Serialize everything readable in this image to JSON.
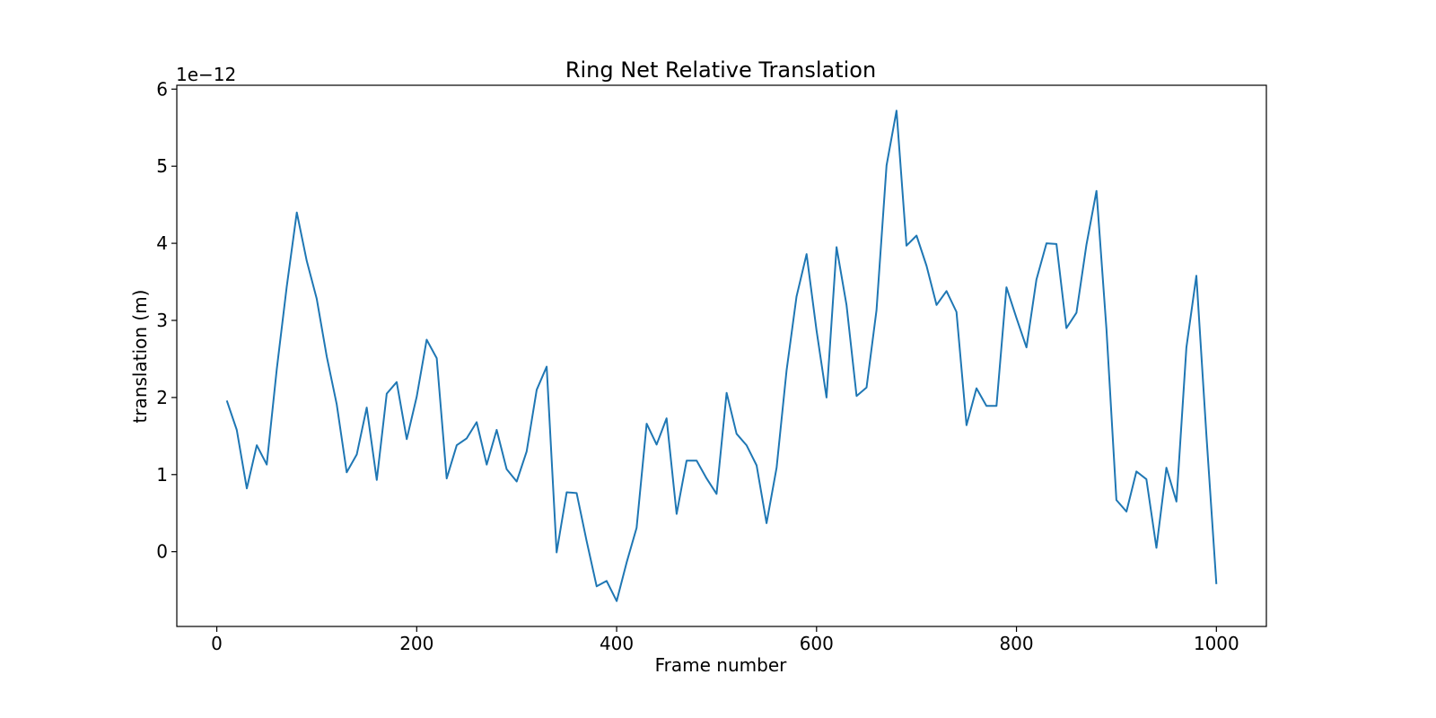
{
  "chart_data": {
    "type": "line",
    "title": "Ring Net Relative Translation",
    "xlabel": "Frame number",
    "ylabel": "translation (m)",
    "y_offset_label": "1e−12",
    "xlim": [
      -40,
      1050
    ],
    "ylim": [
      -0.97,
      6.05
    ],
    "xticks": [
      0,
      200,
      400,
      600,
      800,
      1000
    ],
    "yticks": [
      0,
      1,
      2,
      3,
      4,
      5,
      6
    ],
    "grid": false,
    "series": [
      {
        "color": "#1f77b4",
        "x": [
          10,
          20,
          30,
          40,
          50,
          60,
          70,
          80,
          90,
          100,
          110,
          120,
          130,
          140,
          150,
          160,
          170,
          180,
          190,
          200,
          210,
          220,
          230,
          240,
          250,
          260,
          270,
          280,
          290,
          300,
          310,
          320,
          330,
          340,
          350,
          360,
          370,
          380,
          390,
          400,
          410,
          420,
          430,
          440,
          450,
          460,
          470,
          480,
          490,
          500,
          510,
          520,
          530,
          540,
          550,
          560,
          570,
          580,
          590,
          600,
          610,
          620,
          630,
          640,
          650,
          660,
          670,
          680,
          690,
          700,
          710,
          720,
          730,
          740,
          750,
          760,
          770,
          780,
          790,
          800,
          810,
          820,
          830,
          840,
          850,
          860,
          870,
          880,
          890,
          900,
          910,
          920,
          930,
          940,
          950,
          960,
          970,
          980,
          990,
          1000
        ],
        "y": [
          1.96,
          1.58,
          0.82,
          1.38,
          1.13,
          2.37,
          3.44,
          4.4,
          3.77,
          3.28,
          2.53,
          1.91,
          1.03,
          1.26,
          1.87,
          0.93,
          2.05,
          2.2,
          1.46,
          2.01,
          2.75,
          2.51,
          0.95,
          1.38,
          1.47,
          1.68,
          1.13,
          1.58,
          1.07,
          0.91,
          1.3,
          2.1,
          2.4,
          -0.01,
          0.77,
          0.76,
          0.14,
          -0.45,
          -0.38,
          -0.64,
          -0.14,
          0.31,
          1.66,
          1.39,
          1.73,
          0.49,
          1.18,
          1.18,
          0.95,
          0.75,
          2.06,
          1.53,
          1.38,
          1.12,
          0.37,
          1.09,
          2.35,
          3.31,
          3.86,
          2.87,
          2.0,
          3.95,
          3.2,
          2.02,
          2.13,
          3.13,
          5.01,
          5.72,
          3.97,
          4.1,
          3.71,
          3.2,
          3.38,
          3.11,
          1.64,
          2.12,
          1.89,
          1.89,
          3.43,
          3.03,
          2.65,
          3.53,
          4.0,
          3.99,
          2.9,
          3.1,
          3.98,
          4.68,
          2.89,
          0.67,
          0.52,
          1.04,
          0.94,
          0.05,
          1.09,
          0.65,
          2.65,
          3.58,
          1.51,
          -0.42
        ]
      }
    ]
  }
}
